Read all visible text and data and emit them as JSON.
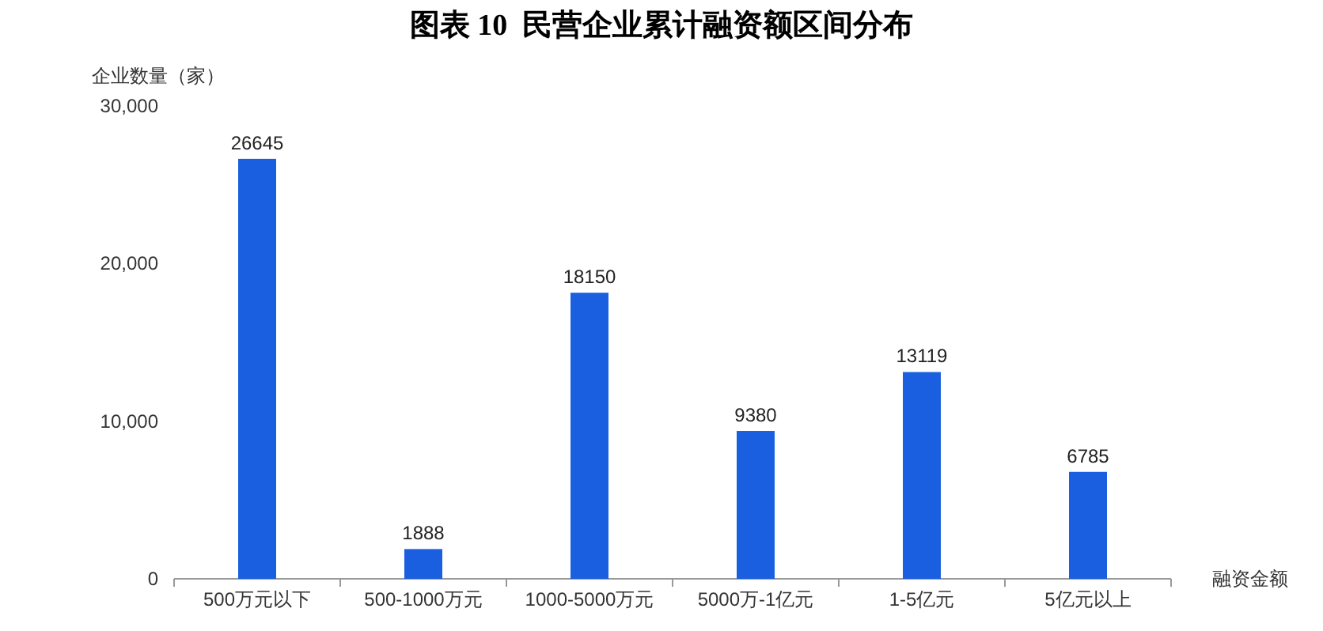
{
  "chart_data": {
    "type": "bar",
    "title": "图表 10  民营企业累计融资额区间分布",
    "ylabel": "企业数量（家）",
    "xlabel": "融资金额",
    "categories": [
      "500万元以下",
      "500-1000万元",
      "1000-5000万元",
      "5000万-1亿元",
      "1-5亿元",
      "5亿元以上"
    ],
    "values": [
      26645,
      1888,
      18150,
      9380,
      13119,
      6785
    ],
    "color": "#1a5fe0",
    "data_labels": true,
    "grid": false,
    "ylim": [
      0,
      30000
    ],
    "yticks": [
      0,
      {
        "value": 10000,
        "label": "10,000"
      },
      {
        "value": 20000,
        "label": "20,000"
      },
      {
        "value": 30000,
        "label": "30,000"
      }
    ]
  }
}
